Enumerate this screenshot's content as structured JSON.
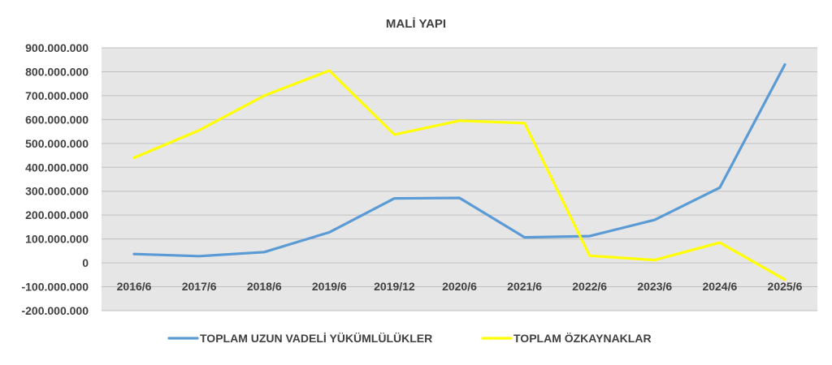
{
  "chart_data": {
    "type": "line",
    "title": "MALİ YAPI",
    "xlabel": "",
    "ylabel": "",
    "categories": [
      "2016/6",
      "2017/6",
      "2018/6",
      "2019/6",
      "2019/12",
      "2020/6",
      "2021/6",
      "2022/6",
      "2023/6",
      "2024/6",
      "2025/6"
    ],
    "ylim": [
      -200000000,
      900000000
    ],
    "yticks": [
      900000000,
      800000000,
      700000000,
      600000000,
      500000000,
      400000000,
      300000000,
      200000000,
      100000000,
      0,
      -100000000,
      -200000000
    ],
    "ytick_labels": [
      "900.000.000",
      "800.000.000",
      "700.000.000",
      "600.000.000",
      "500.000.000",
      "400.000.000",
      "300.000.000",
      "200.000.000",
      "100.000.000",
      "0",
      "-100.000.000",
      "-200.000.000"
    ],
    "grid": true,
    "legend_position": "bottom",
    "series": [
      {
        "name": "TOPLAM UZUN VADELİ YÜKÜMLÜLÜKLER",
        "color": "#5b9bd5",
        "values": [
          37000000,
          28000000,
          45000000,
          128000000,
          270000000,
          272000000,
          107000000,
          112000000,
          180000000,
          315000000,
          830000000
        ]
      },
      {
        "name": "TOPLAM ÖZKAYNAKLAR",
        "color": "#ffff00",
        "values": [
          440000000,
          555000000,
          700000000,
          805000000,
          537000000,
          595000000,
          585000000,
          30000000,
          12000000,
          85000000,
          -70000000
        ]
      }
    ],
    "colors": {
      "plot_background": "#e7e6e6",
      "gridline": "#bfbfbf",
      "text": "#404040"
    }
  }
}
